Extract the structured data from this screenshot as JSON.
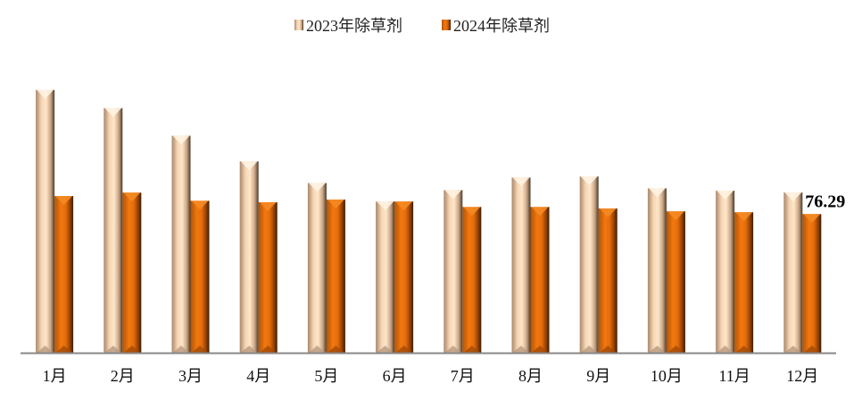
{
  "chart_data": {
    "type": "bar",
    "title": "",
    "xlabel": "",
    "ylabel": "",
    "categories": [
      "1月",
      "2月",
      "3月",
      "4月",
      "5月",
      "6月",
      "7月",
      "8月",
      "9月",
      "10月",
      "11月",
      "12月"
    ],
    "series": [
      {
        "name": "2023年除草剂",
        "color": "#f3cfa8",
        "values": [
          144.6,
          134.6,
          119.4,
          105.3,
          93.4,
          83.2,
          89.5,
          96.4,
          97.0,
          90.5,
          89.2,
          88.2
        ]
      },
      {
        "name": "2024年除草剂",
        "color": "#e8700f",
        "values": [
          86.2,
          88.1,
          83.6,
          82.8,
          84.3,
          83.2,
          80.2,
          80.2,
          79.4,
          77.8,
          77.3,
          76.29
        ]
      }
    ],
    "data_labels": [
      {
        "series": 1,
        "category": "12月",
        "text": "76.29"
      }
    ],
    "ylim": [
      0,
      150
    ],
    "grid": false,
    "legend": "top"
  }
}
